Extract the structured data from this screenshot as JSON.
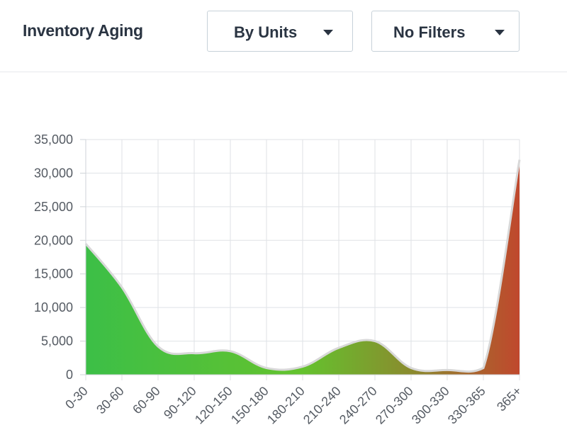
{
  "header": {
    "title": "Inventory Aging",
    "units_dropdown": {
      "selected": "By Units"
    },
    "filters_dropdown": {
      "selected": "No Filters"
    }
  },
  "chart_data": {
    "type": "area",
    "categories": [
      "0-30",
      "30-60",
      "60-90",
      "90-120",
      "120-150",
      "150-180",
      "180-210",
      "210-240",
      "240-270",
      "270-300",
      "300-330",
      "330-365",
      "365+"
    ],
    "values": [
      19500,
      13000,
      4200,
      3200,
      3500,
      1000,
      1200,
      4000,
      5000,
      1000,
      700,
      1000,
      32000
    ],
    "yticks": [
      "0",
      "5,000",
      "10,000",
      "15,000",
      "20,000",
      "25,000",
      "30,000",
      "35,000"
    ],
    "ylim": [
      0,
      35000
    ],
    "grid": true,
    "gradient_colors": [
      "#3cbf47",
      "#64c22e",
      "#8a8b2e",
      "#c0482d"
    ]
  }
}
